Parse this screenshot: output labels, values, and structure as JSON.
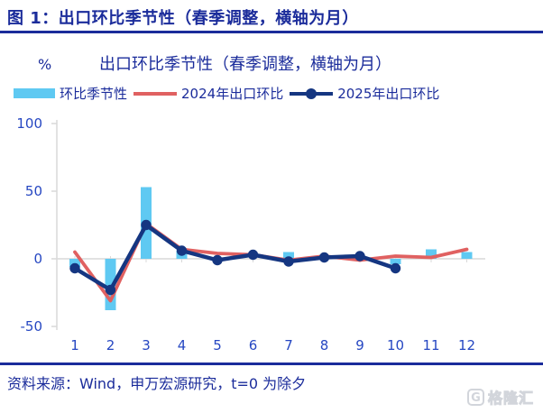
{
  "page": {
    "header_title": "图 1：出口环比季节性（春季调整，横轴为月）",
    "footer_source": "资料来源：Wind，申万宏源研究，t=0 为除夕",
    "logo_text": "格隆汇",
    "logo_icon_glyph": "G"
  },
  "chart": {
    "unit_label": "%",
    "title": "出口环比季节性（春季调整，横轴为月）"
  },
  "legend": {
    "items": [
      {
        "label": "环比季节性",
        "type": "bar",
        "color": "#5FC9F2"
      },
      {
        "label": "2024年出口环比",
        "type": "line",
        "color": "#E06161"
      },
      {
        "label": "2025年出口环比",
        "type": "line-dot",
        "color": "#153681"
      }
    ]
  },
  "colors": {
    "title_navy": "#1B2C9B",
    "axis_text_blue": "#2647C2",
    "axis_line_gray": "#D9D9D9",
    "bar_light_blue": "#5FC9F2",
    "line_red": "#E06161",
    "line_navy": "#153681",
    "logo_gray": "#D2D5DB"
  },
  "chart_data": {
    "type": "bar",
    "title": "出口环比季节性（春季调整，横轴为月）",
    "ylabel": "%",
    "xlabel": "",
    "categories": [
      1,
      2,
      3,
      4,
      5,
      6,
      7,
      8,
      9,
      10,
      11,
      12
    ],
    "ylim": [
      -50,
      100
    ],
    "yticks": [
      100,
      50,
      0,
      -50
    ],
    "grid": false,
    "legend_position": "top",
    "series": [
      {
        "name": "环比季节性",
        "type": "bar",
        "color": "#5FC9F2",
        "values": [
          -6,
          -38,
          53,
          6,
          0,
          0,
          5,
          0,
          0,
          -4,
          7,
          5
        ]
      },
      {
        "name": "2024年出口环比",
        "type": "line",
        "color": "#E06161",
        "values": [
          5,
          -31,
          26,
          7,
          4,
          3,
          -1,
          2,
          -1,
          2,
          1,
          7
        ]
      },
      {
        "name": "2025年出口环比",
        "type": "line",
        "marker": "circle",
        "color": "#153681",
        "values": [
          -7,
          -23,
          25,
          6,
          -1,
          3,
          -2,
          1,
          2,
          -7,
          null,
          null
        ]
      }
    ]
  }
}
